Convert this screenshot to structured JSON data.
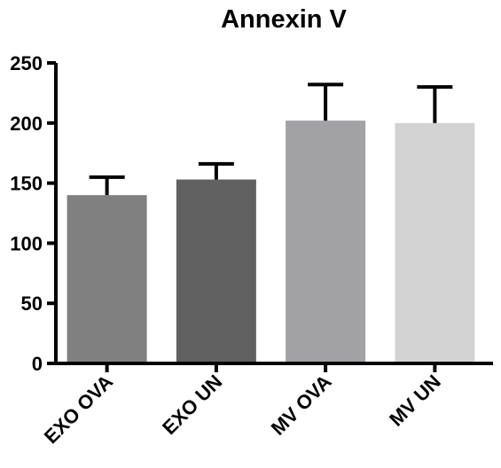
{
  "chart_data": {
    "type": "bar",
    "title": "Annexin V",
    "xlabel": "",
    "ylabel": "",
    "categories": [
      "EXO OVA",
      "EXO UN",
      "MV OVA",
      "MV UN"
    ],
    "values": [
      140,
      153,
      202,
      200
    ],
    "errors": [
      15,
      13,
      30,
      30
    ],
    "colors": [
      "#808080",
      "#616161",
      "#a2a2a5",
      "#d3d3d3"
    ],
    "ylim": [
      0,
      250
    ],
    "yticks": [
      0,
      50,
      100,
      150,
      200,
      250
    ],
    "grid": false,
    "legend": "none"
  }
}
